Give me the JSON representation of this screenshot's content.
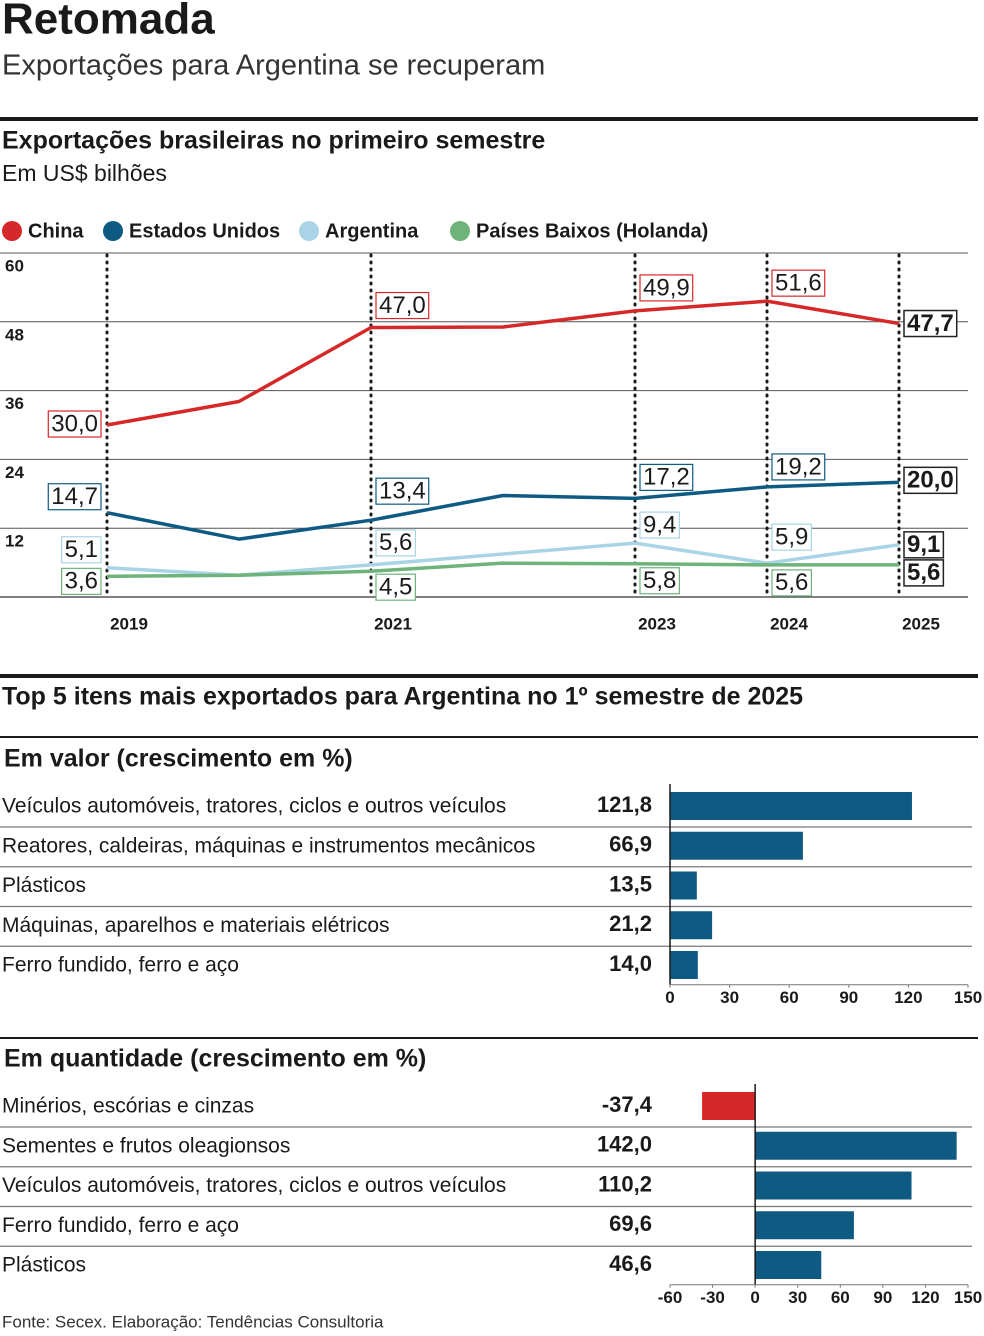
{
  "header": {
    "title": "Retomada",
    "subtitle": "Exportações para Argentina se recuperam"
  },
  "section_title": "Top 5 itens mais exportados para Argentina no 1º semestre de 2025",
  "source": "Fonte: Secex. Elaboração: Tendências Consultoria",
  "chart_data": [
    {
      "type": "line",
      "title": "Exportações brasileiras no primeiro semestre",
      "subtitle": "Em US$ bilhões",
      "categories": [
        "2019",
        null,
        "2021",
        null,
        "2023",
        "2024",
        "2025"
      ],
      "series": [
        {
          "name": "China",
          "color": "#d62828",
          "values": [
            30.0,
            34.1,
            47.0,
            47.1,
            49.9,
            51.6,
            47.7
          ],
          "value_labels": [
            "30,0",
            null,
            "47,0",
            null,
            "49,9",
            "51,6",
            "47,7"
          ]
        },
        {
          "name": "Estados Unidos",
          "color": "#0e5a82",
          "values": [
            14.7,
            10.1,
            13.4,
            17.7,
            17.2,
            19.2,
            20.0
          ],
          "value_labels": [
            "14,7",
            null,
            "13,4",
            null,
            "17,2",
            "19,2",
            "20,0"
          ]
        },
        {
          "name": "Argentina",
          "color": "#a9d4e6",
          "values": [
            5.1,
            3.8,
            5.6,
            7.5,
            9.4,
            5.9,
            9.1
          ],
          "value_labels": [
            "5,1",
            null,
            "5,6",
            null,
            "9,4",
            "5,9",
            "9,1"
          ]
        },
        {
          "name": "Países Baixos (Holanda)",
          "color": "#6db37a",
          "values": [
            3.6,
            3.8,
            4.5,
            5.9,
            5.8,
            5.6,
            5.6
          ],
          "value_labels": [
            "3,6",
            null,
            "4,5",
            null,
            "5,8",
            "5,6",
            "5,6"
          ]
        }
      ],
      "ylim": [
        0,
        60
      ],
      "yticks": [
        12,
        24,
        36,
        48,
        60
      ],
      "grid": true,
      "legend": "top"
    },
    {
      "type": "bar",
      "orientation": "horizontal",
      "title": "Em valor (crescimento em %)",
      "categories": [
        "Veículos automóveis, tratores, ciclos e outros veículos",
        "Reatores, caldeiras, máquinas e instrumentos mecânicos",
        "Plásticos",
        "Máquinas, aparelhos e materiais elétricos",
        "Ferro fundido, ferro e aço"
      ],
      "values": [
        121.8,
        66.9,
        13.5,
        21.2,
        14.0
      ],
      "value_labels": [
        "121,8",
        "66,9",
        "13,5",
        "21,2",
        "14,0"
      ],
      "color": "#0e5a82",
      "negative_color": "#d62828",
      "xlim": [
        0,
        150
      ],
      "xticks": [
        0,
        30,
        60,
        90,
        120,
        150
      ]
    },
    {
      "type": "bar",
      "orientation": "horizontal",
      "title": "Em quantidade (crescimento em %)",
      "categories": [
        "Minérios, escórias e cinzas",
        "Sementes e frutos oleagionsos",
        "Veículos automóveis, tratores, ciclos e outros veículos",
        "Ferro fundido, ferro e aço",
        "Plásticos"
      ],
      "values": [
        -37.4,
        142.0,
        110.2,
        69.6,
        46.6
      ],
      "value_labels": [
        "-37,4",
        "142,0",
        "110,2",
        "69,6",
        "46,6"
      ],
      "color": "#0e5a82",
      "negative_color": "#d62828",
      "xlim": [
        -60,
        150
      ],
      "xticks": [
        -60,
        -30,
        0,
        30,
        60,
        90,
        120,
        150
      ]
    }
  ]
}
